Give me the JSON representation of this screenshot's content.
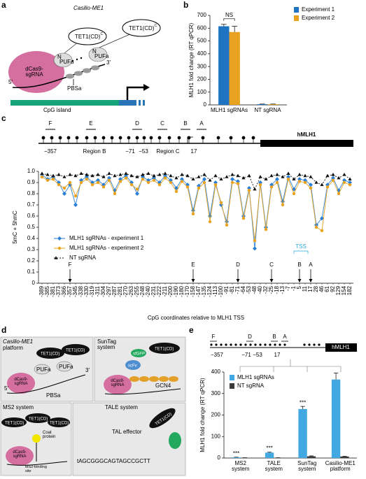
{
  "chart_data": [
    {
      "type": "bar",
      "panel": "b",
      "categories": [
        "MLH1 sgRNAs",
        "NT sgRNA"
      ],
      "series": [
        {
          "name": "Experiment 1",
          "color": "#1f74c2",
          "values": [
            615,
            5
          ],
          "errors": [
            15,
            2
          ]
        },
        {
          "name": "Experiment 2",
          "color": "#e8a21f",
          "values": [
            570,
            5
          ],
          "errors": [
            45,
            2
          ]
        }
      ],
      "ylabel": "MLH1 fold change (RT qPCR)",
      "ylim": [
        0,
        700
      ],
      "yticks": [
        0,
        100,
        200,
        300,
        400,
        500,
        600,
        700
      ],
      "annotation": "NS",
      "legend": "right"
    },
    {
      "type": "line",
      "panel": "c",
      "categories": [
        "-389",
        "-385",
        "-381",
        "-373",
        "-366",
        "-357",
        "-345",
        "-338",
        "-330",
        "-319",
        "-311",
        "-304",
        "-297",
        "-287",
        "-281",
        "-270",
        "-263",
        "-255",
        "-248",
        "-240",
        "-231",
        "-222",
        "-211",
        "-200",
        "-190",
        "-180",
        "-170",
        "-158",
        "-147",
        "-135",
        "-124",
        "-113",
        "-100",
        "-91",
        "-81",
        "-71",
        "-64",
        "-53",
        "-48",
        "-40",
        "-32",
        "-25",
        "-18",
        "-13",
        "-7",
        "-1",
        "5",
        "11",
        "17",
        "28",
        "46",
        "61",
        "92",
        "129",
        "154",
        "182"
      ],
      "series": [
        {
          "name": "MLH1 sgRNAs - experiment 1",
          "color": "#2a7fd4",
          "marker": "diamond",
          "dash": false,
          "values": [
            0.97,
            0.93,
            0.95,
            0.9,
            0.8,
            0.88,
            0.7,
            0.92,
            0.95,
            0.9,
            0.92,
            0.88,
            0.94,
            0.83,
            0.93,
            0.96,
            0.9,
            0.8,
            0.95,
            0.92,
            0.94,
            0.9,
            0.96,
            0.92,
            0.85,
            0.93,
            0.88,
            0.65,
            0.87,
            0.93,
            0.6,
            0.9,
            0.7,
            0.55,
            0.93,
            0.91,
            0.6,
            0.85,
            0.31,
            0.9,
            0.5,
            0.88,
            0.93,
            0.73,
            0.95,
            0.84,
            0.93,
            0.92,
            0.88,
            0.52,
            0.58,
            0.88,
            0.94,
            0.83,
            0.92,
            0.9
          ]
        },
        {
          "name": "MLH1 sgRNAs - experiment 2",
          "color": "#e8a21f",
          "marker": "circle",
          "dash": false,
          "values": [
            0.95,
            0.92,
            0.93,
            0.88,
            0.85,
            0.9,
            0.78,
            0.9,
            0.93,
            0.88,
            0.9,
            0.86,
            0.92,
            0.8,
            0.91,
            0.94,
            0.88,
            0.84,
            0.93,
            0.9,
            0.92,
            0.88,
            0.94,
            0.9,
            0.82,
            0.91,
            0.86,
            0.62,
            0.85,
            0.9,
            0.55,
            0.88,
            0.72,
            0.52,
            0.9,
            0.89,
            0.58,
            0.83,
            0.38,
            0.88,
            0.48,
            0.86,
            0.9,
            0.7,
            0.93,
            0.8,
            0.91,
            0.9,
            0.85,
            0.5,
            0.47,
            0.86,
            0.92,
            0.8,
            0.9,
            0.88
          ]
        },
        {
          "name": "NT sgRNA",
          "color": "#111111",
          "marker": "triangle",
          "dash": true,
          "values": [
            0.98,
            0.97,
            0.96,
            0.97,
            0.95,
            0.97,
            0.96,
            0.98,
            0.97,
            0.96,
            0.97,
            0.95,
            0.98,
            0.96,
            0.97,
            0.98,
            0.96,
            0.95,
            0.97,
            0.98,
            0.96,
            0.97,
            0.98,
            0.96,
            0.94,
            0.97,
            0.96,
            0.93,
            0.95,
            0.97,
            0.92,
            0.96,
            0.93,
            0.95,
            0.97,
            0.96,
            0.94,
            0.96,
            0.84,
            0.95,
            0.93,
            0.96,
            0.97,
            0.95,
            0.98,
            0.93,
            0.97,
            0.96,
            0.95,
            0.9,
            0.88,
            0.96,
            0.97,
            0.94,
            0.97,
            0.93
          ]
        }
      ],
      "ylabel": "5mC + 5hmC",
      "xlabel": "CpG coordinates relative to MLH1 TSS",
      "ylim": [
        0,
        1
      ],
      "yticks": [
        0,
        0.1,
        0.2,
        0.3,
        0.4,
        0.5,
        0.6,
        0.7,
        0.8,
        0.9,
        {
          "value": 1,
          "label": "1.0"
        }
      ],
      "legend": "left",
      "markers": [
        {
          "label": "F",
          "category": "-357"
        },
        {
          "label": "E",
          "category": "-158"
        },
        {
          "label": "D",
          "category": "-71"
        },
        {
          "label": "C",
          "category": "-25"
        },
        {
          "label": "B",
          "category": "5"
        },
        {
          "label": "A",
          "category": "17"
        }
      ],
      "tss": {
        "label": "TSS",
        "category": "5"
      }
    },
    {
      "type": "bar",
      "panel": "e",
      "categories": [
        "MS2\nsystem",
        "TALE\nsystem",
        "SunTag\nsystem",
        "Casilio-ME1\nplatform"
      ],
      "series": [
        {
          "name": "MLH1 sgRNAs",
          "color": "#42a8e2",
          "values": [
            3,
            25,
            228,
            365
          ],
          "errors": [
            1,
            3,
            12,
            30
          ]
        },
        {
          "name": "NT sgRNA",
          "color": "#3a3a3a",
          "values": [
            1,
            1,
            8,
            7
          ],
          "errors": [
            0.5,
            0.5,
            2,
            1
          ]
        }
      ],
      "ylabel": "MLH1 fold change (RT qPCR)",
      "ylim": [
        0,
        400
      ],
      "yticks": [
        0,
        100,
        200,
        300,
        400
      ],
      "significance": [
        "***",
        "***",
        "***",
        null
      ],
      "legend": "upper-left"
    }
  ],
  "figure": {
    "panels": [
      "a",
      "d"
    ],
    "a": {
      "title": "Casilio-ME1",
      "dcas9": "dCas9-\nsgRNA",
      "tet": "TET1(CD)",
      "tet_sup": "C",
      "n": "N",
      "pufa": "PUFa",
      "five": "5'",
      "three": "3'",
      "pbsa": "PBSa",
      "cpg": "CpG island"
    },
    "map_c": {
      "sites": [
        "F",
        "E",
        "D",
        "C",
        "B",
        "A"
      ],
      "coords": [
        "−357",
        "−71",
        "−53",
        "17"
      ],
      "regions": [
        "Region B",
        "Region C"
      ],
      "gene": "hMLH1"
    },
    "d": {
      "casilio": "Casilio-ME1",
      "platform": "platform",
      "suntag": "SunTag\nsystem",
      "ms2": "MS2 system",
      "tale": "TALE system",
      "dcas9": "dCas9-\nsgRNA",
      "tet": "TET1(CD)",
      "pufa": "PUFa",
      "pbsa": "PBSa",
      "scfv": "scFv",
      "gfp": "sfGFP",
      "gcn4": "GCN4",
      "coat": "Coat\nprotein",
      "ms2site": "MS2-binding\nsite",
      "tal": "TAL effector",
      "sequence": "tAGCGGGCAGTAGCCGCTT",
      "five": "5'",
      "three": "3'"
    },
    "map_e": {
      "sites": [
        "F",
        "D",
        "B",
        "A"
      ],
      "coords": [
        "−357",
        "−71",
        "−53",
        "17"
      ],
      "gene": "hMLH1"
    }
  }
}
